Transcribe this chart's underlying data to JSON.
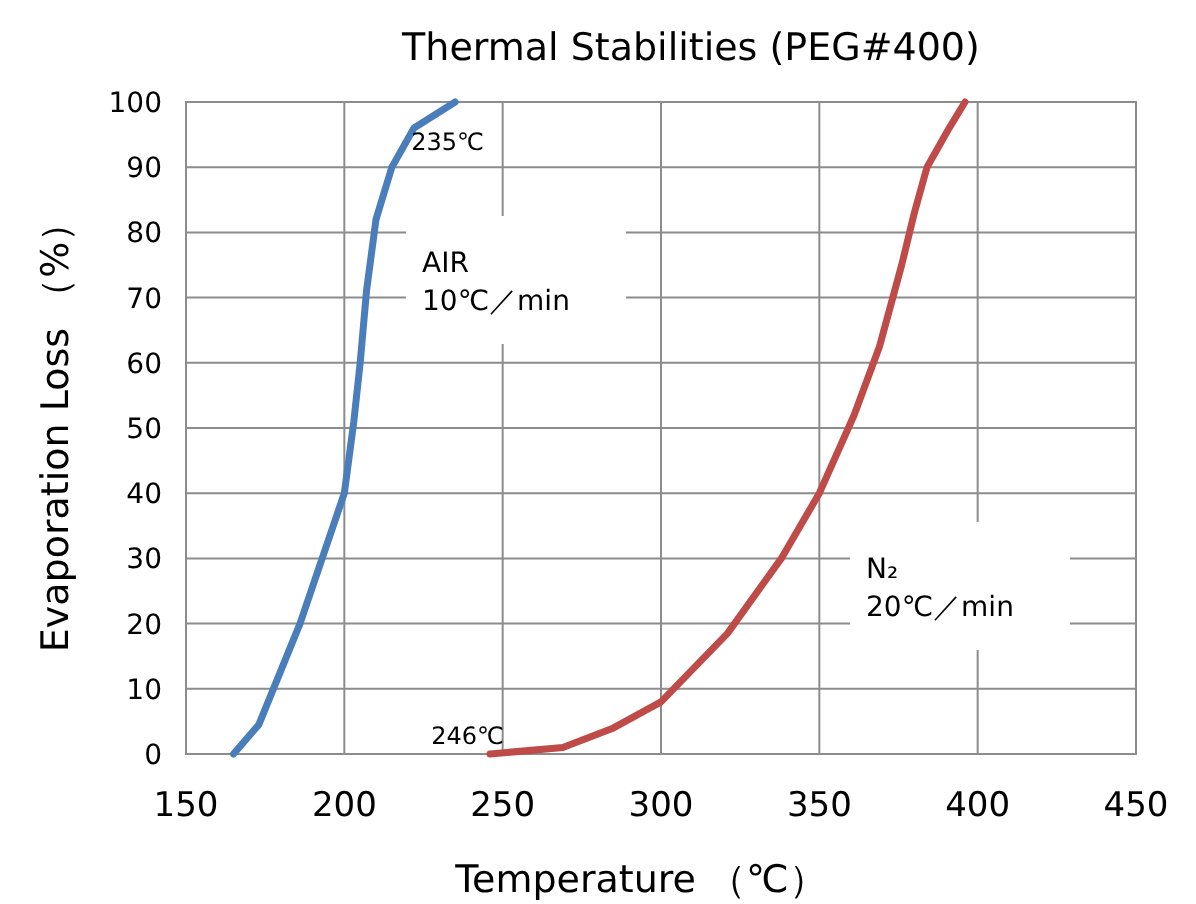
{
  "chart_data": {
    "type": "line",
    "title": "Thermal Stabilities (PEG#400)",
    "xlabel": "Temperature （℃）",
    "ylabel": "Evaporation Loss （%）",
    "xlim": [
      150,
      450
    ],
    "ylim": [
      0,
      100
    ],
    "xticks": [
      150,
      200,
      250,
      300,
      350,
      400,
      450
    ],
    "yticks": [
      0,
      10,
      20,
      30,
      40,
      50,
      60,
      70,
      80,
      90,
      100
    ],
    "grid": true,
    "series": [
      {
        "name": "AIR\n10℃／min",
        "color": "#4a7ebb",
        "x": [
          165,
          173,
          186,
          193,
          200,
          203,
          205,
          207,
          210,
          215,
          222,
          235
        ],
        "values": [
          0,
          4.5,
          20,
          30,
          40,
          51,
          60,
          71,
          82,
          90,
          96,
          100
        ]
      },
      {
        "name": "N₂\n20℃／min",
        "color": "#be4b48",
        "x": [
          246,
          269,
          285,
          300,
          321,
          338,
          350,
          361,
          369,
          376,
          380,
          384,
          391,
          396
        ],
        "values": [
          0,
          1,
          4,
          8,
          18.5,
          30,
          40,
          52,
          62.5,
          75,
          83,
          90,
          96,
          100
        ]
      }
    ],
    "annotations": [
      {
        "text": "235℃",
        "x": 235,
        "y": 100
      },
      {
        "text": "246℃",
        "x": 246,
        "y": 0
      }
    ]
  }
}
